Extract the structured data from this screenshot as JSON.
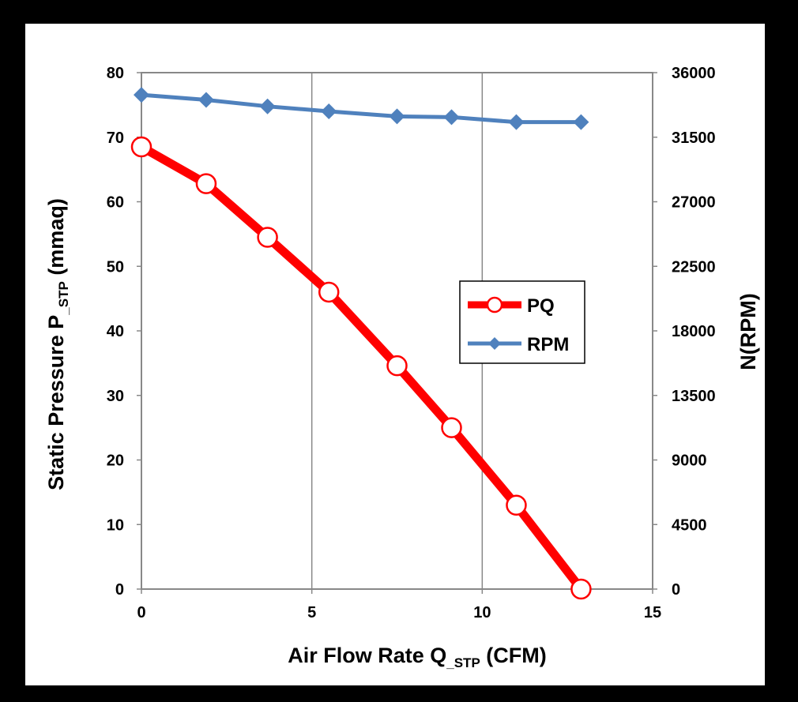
{
  "chart_data": {
    "type": "line",
    "title": "",
    "xlabel": "Air Flow Rate Q_STP (CFM)",
    "xlabel_parts": {
      "main": "Air Flow Rate Q",
      "sub": "_STP",
      "tail": " (CFM)"
    },
    "ylabel": "Static Pressure P_STP (mmaq)",
    "ylabel_parts": {
      "main": "Static Pressure P",
      "sub": "_STP",
      "tail": " (mmaq)"
    },
    "y2label": "N(RPM)",
    "xlim": [
      0,
      15
    ],
    "ylim": [
      0,
      80
    ],
    "y2lim": [
      0,
      36000
    ],
    "xticks": [
      0,
      5,
      10,
      15
    ],
    "yticks": [
      0,
      10,
      20,
      30,
      40,
      50,
      60,
      70,
      80
    ],
    "y2ticks": [
      0,
      4500,
      9000,
      13500,
      18000,
      22500,
      27000,
      31500,
      36000
    ],
    "grid": "vertical",
    "legend_position": "center-right",
    "series": [
      {
        "name": "PQ",
        "axis": "left",
        "color": "#ff0000",
        "marker": "open-circle",
        "x": [
          0,
          1.9,
          3.7,
          5.5,
          7.5,
          9.1,
          11.0,
          12.9
        ],
        "values": [
          68.5,
          62.8,
          54.5,
          46.0,
          34.6,
          25.0,
          13.0,
          0.0
        ]
      },
      {
        "name": "RPM",
        "axis": "right",
        "color": "#4f81bd",
        "marker": "diamond",
        "x": [
          0,
          1.9,
          3.7,
          5.5,
          7.5,
          9.1,
          11.0,
          12.9
        ],
        "values": [
          34450,
          34100,
          33650,
          33300,
          32950,
          32900,
          32550,
          32550
        ]
      }
    ]
  }
}
